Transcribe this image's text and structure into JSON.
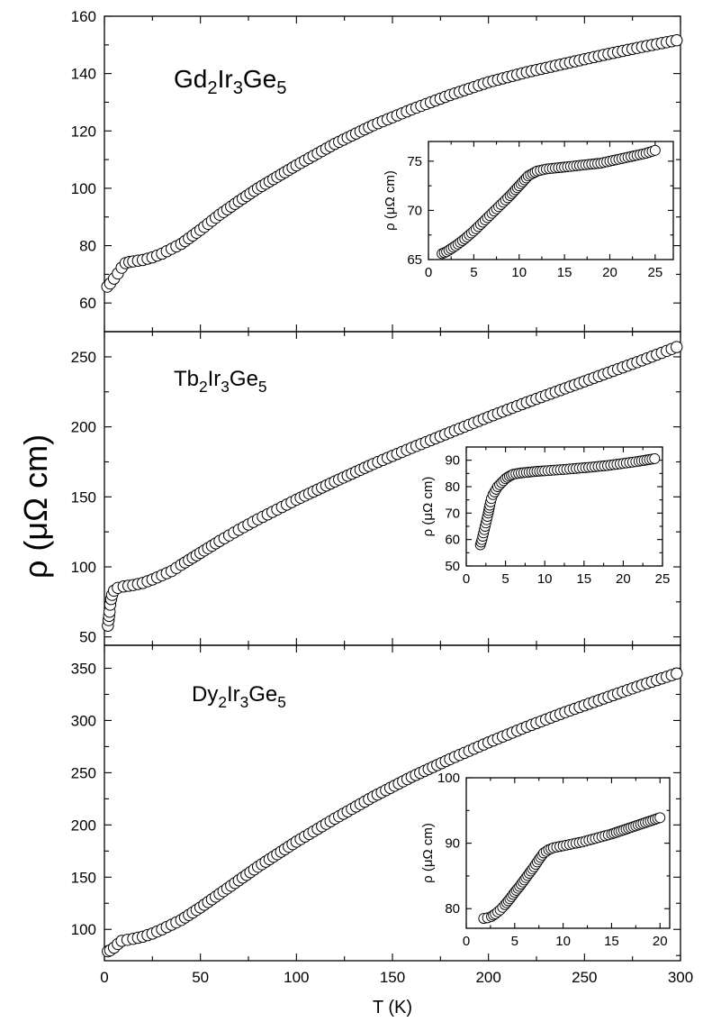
{
  "figure": {
    "y_label": "ρ (μΩ cm)",
    "x_label": "T (K)"
  },
  "chart_data": [
    {
      "type": "scatter",
      "panel": "top",
      "compound": {
        "base": "Gd",
        "n1": "2",
        "mid": "Ir",
        "n2": "3",
        "end": "Ge",
        "n3": "5"
      },
      "xlim": [
        0,
        300
      ],
      "ylim": [
        50,
        160
      ],
      "x_ticks": [
        0,
        50,
        100,
        150,
        200,
        250,
        300
      ],
      "y_ticks": [
        60,
        80,
        100,
        120,
        140,
        160
      ],
      "series": [
        {
          "name": "Gd2Ir3Ge5",
          "marker": "open-circle",
          "points": [
            [
              1.5,
              65.7
            ],
            [
              3,
              66.8
            ],
            [
              5,
              68.5
            ],
            [
              7,
              70.3
            ],
            [
              9,
              72.3
            ],
            [
              11,
              73.9
            ],
            [
              13,
              74.3
            ],
            [
              15,
              74.5
            ],
            [
              20,
              75
            ],
            [
              25,
              75.9
            ],
            [
              30,
              77.2
            ],
            [
              40,
              80.6
            ],
            [
              50,
              85.5
            ],
            [
              60,
              90.8
            ],
            [
              70,
              95.5
            ],
            [
              80,
              100
            ],
            [
              90,
              104
            ],
            [
              100,
              108
            ],
            [
              120,
              115.5
            ],
            [
              140,
              122
            ],
            [
              160,
              127.5
            ],
            [
              180,
              132.5
            ],
            [
              200,
              137
            ],
            [
              220,
              140.5
            ],
            [
              240,
              143.5
            ],
            [
              260,
              146.5
            ],
            [
              280,
              149.3
            ],
            [
              298,
              151.6
            ]
          ]
        }
      ],
      "inset": {
        "xlim": [
          0,
          27
        ],
        "ylim": [
          65,
          77
        ],
        "x_ticks": [
          0,
          5,
          10,
          15,
          20,
          25
        ],
        "y_ticks": [
          65,
          70,
          75
        ],
        "y_label": "ρ (μΩ cm)",
        "points": [
          [
            1.5,
            65.6
          ],
          [
            2,
            65.8
          ],
          [
            3,
            66.4
          ],
          [
            4,
            67.1
          ],
          [
            5,
            67.9
          ],
          [
            6,
            68.8
          ],
          [
            7,
            69.7
          ],
          [
            8,
            70.6
          ],
          [
            9,
            71.5
          ],
          [
            10,
            72.5
          ],
          [
            11,
            73.5
          ],
          [
            12,
            74
          ],
          [
            13,
            74.2
          ],
          [
            14,
            74.3
          ],
          [
            15,
            74.4
          ],
          [
            16,
            74.5
          ],
          [
            17,
            74.6
          ],
          [
            18,
            74.7
          ],
          [
            19,
            74.8
          ],
          [
            20,
            75
          ],
          [
            21,
            75.2
          ],
          [
            22,
            75.4
          ],
          [
            23,
            75.6
          ],
          [
            24,
            75.8
          ],
          [
            25,
            76.1
          ]
        ]
      }
    },
    {
      "type": "scatter",
      "panel": "middle",
      "compound": {
        "base": "Tb",
        "n1": "2",
        "mid": "Ir",
        "n2": "3",
        "end": "Ge",
        "n3": "5"
      },
      "xlim": [
        0,
        300
      ],
      "ylim": [
        44,
        268
      ],
      "x_ticks": [
        0,
        50,
        100,
        150,
        200,
        250,
        300
      ],
      "y_ticks": [
        50,
        100,
        150,
        200,
        250
      ],
      "series": [
        {
          "name": "Tb2Ir3Ge5",
          "marker": "open-circle",
          "points": [
            [
              1.8,
              58
            ],
            [
              2.2,
              62
            ],
            [
              2.7,
              68
            ],
            [
              3,
              73
            ],
            [
              3.5,
              77
            ],
            [
              4,
              80
            ],
            [
              5,
              83
            ],
            [
              7,
              85
            ],
            [
              10,
              86
            ],
            [
              15,
              87
            ],
            [
              20,
              88.5
            ],
            [
              25,
              91
            ],
            [
              30,
              94
            ],
            [
              35,
              97
            ],
            [
              40,
              101.5
            ],
            [
              50,
              110
            ],
            [
              60,
              118.5
            ],
            [
              70,
              126.5
            ],
            [
              80,
              134
            ],
            [
              90,
              141
            ],
            [
              100,
              148
            ],
            [
              120,
              161
            ],
            [
              140,
              173.5
            ],
            [
              160,
              185
            ],
            [
              180,
              196
            ],
            [
              200,
              207
            ],
            [
              220,
              217.5
            ],
            [
              240,
              227.5
            ],
            [
              260,
              237.5
            ],
            [
              280,
              247.5
            ],
            [
              298,
              257
            ]
          ]
        }
      ],
      "inset": {
        "xlim": [
          0,
          25
        ],
        "ylim": [
          50,
          95
        ],
        "x_ticks": [
          0,
          5,
          10,
          15,
          20,
          25
        ],
        "y_ticks": [
          50,
          60,
          70,
          80,
          90
        ],
        "y_label": "ρ (μΩ cm)",
        "points": [
          [
            1.8,
            58
          ],
          [
            2,
            60
          ],
          [
            2.2,
            62.5
          ],
          [
            2.4,
            65
          ],
          [
            2.6,
            67.5
          ],
          [
            2.8,
            70
          ],
          [
            3,
            73
          ],
          [
            3.2,
            75.5
          ],
          [
            3.4,
            77
          ],
          [
            3.6,
            78
          ],
          [
            3.8,
            79
          ],
          [
            4,
            80
          ],
          [
            4.5,
            81.5
          ],
          [
            5,
            83
          ],
          [
            5.5,
            84
          ],
          [
            6,
            84.7
          ],
          [
            7,
            85.2
          ],
          [
            8,
            85.5
          ],
          [
            9,
            85.8
          ],
          [
            10,
            86
          ],
          [
            12,
            86.4
          ],
          [
            14,
            86.9
          ],
          [
            16,
            87.4
          ],
          [
            18,
            88
          ],
          [
            20,
            88.8
          ],
          [
            22,
            89.6
          ],
          [
            24,
            90.6
          ]
        ]
      }
    },
    {
      "type": "scatter",
      "panel": "bottom",
      "compound": {
        "base": "Dy",
        "n1": "2",
        "mid": "Ir",
        "n2": "3",
        "end": "Ge",
        "n3": "5"
      },
      "xlim": [
        0,
        300
      ],
      "ylim": [
        70,
        372
      ],
      "x_ticks": [
        0,
        50,
        100,
        150,
        200,
        250,
        300
      ],
      "y_ticks": [
        100,
        150,
        200,
        250,
        300,
        350
      ],
      "series": [
        {
          "name": "Dy2Ir3Ge5",
          "marker": "open-circle",
          "points": [
            [
              1.8,
              79
            ],
            [
              3,
              80
            ],
            [
              5,
              82.5
            ],
            [
              7,
              86
            ],
            [
              9,
              89
            ],
            [
              12,
              90
            ],
            [
              15,
              91
            ],
            [
              20,
              93
            ],
            [
              25,
              96
            ],
            [
              30,
              100
            ],
            [
              40,
              109
            ],
            [
              50,
              121
            ],
            [
              60,
              134
            ],
            [
              70,
              147
            ],
            [
              80,
              160
            ],
            [
              90,
              172
            ],
            [
              100,
              184
            ],
            [
              120,
              206
            ],
            [
              140,
              227
            ],
            [
              160,
              246
            ],
            [
              180,
              263
            ],
            [
              200,
              279
            ],
            [
              220,
              294
            ],
            [
              240,
              308
            ],
            [
              260,
              321
            ],
            [
              280,
              334
            ],
            [
              298,
              345
            ]
          ]
        }
      ],
      "inset": {
        "xlim": [
          0,
          21
        ],
        "ylim": [
          77,
          100
        ],
        "x_ticks": [
          0,
          5,
          10,
          15,
          20
        ],
        "y_ticks": [
          80,
          90,
          100
        ],
        "y_label": "ρ (μΩ cm)",
        "points": [
          [
            1.8,
            78.5
          ],
          [
            2.2,
            78.6
          ],
          [
            2.6,
            78.8
          ],
          [
            3,
            79.2
          ],
          [
            3.5,
            79.8
          ],
          [
            4,
            80.6
          ],
          [
            4.5,
            81.5
          ],
          [
            5,
            82.5
          ],
          [
            5.5,
            83.4
          ],
          [
            6,
            84.4
          ],
          [
            6.5,
            85.4
          ],
          [
            7,
            86.4
          ],
          [
            7.5,
            87.5
          ],
          [
            8,
            88.5
          ],
          [
            8.5,
            89
          ],
          [
            9,
            89.3
          ],
          [
            10,
            89.6
          ],
          [
            11,
            89.9
          ],
          [
            12,
            90.2
          ],
          [
            13,
            90.6
          ],
          [
            14,
            91
          ],
          [
            15,
            91.4
          ],
          [
            16,
            91.9
          ],
          [
            17,
            92.4
          ],
          [
            18,
            92.9
          ],
          [
            19,
            93.4
          ],
          [
            20,
            93.9
          ]
        ]
      }
    }
  ]
}
